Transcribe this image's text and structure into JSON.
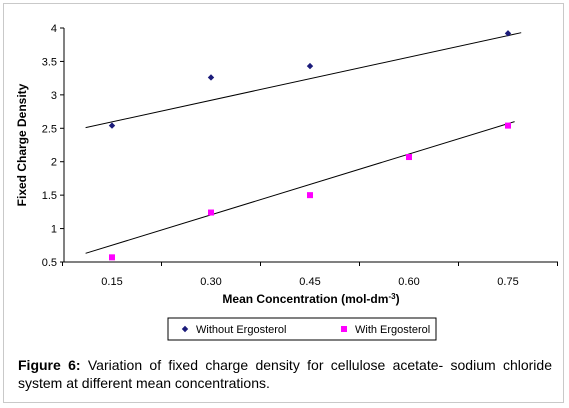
{
  "chart_data": {
    "type": "scatter",
    "xlabel": "Mean Concentration (mol-dm",
    "xlabel_superscript": "-3",
    "xlabel_suffix": ")",
    "ylabel": "Fixed Charge Density",
    "categories": [
      "0.15",
      "0.30",
      "0.45",
      "0.60",
      "0.75"
    ],
    "y_ticks": [
      "4",
      "3.5",
      "3",
      "2.5",
      "2",
      "1.5",
      "1",
      "0.5"
    ],
    "ylim": [
      0.5,
      4
    ],
    "grid": false,
    "legend_position": "bottom",
    "series": [
      {
        "name": "Without Ergosterol",
        "marker": "diamond",
        "color": "#1b1b7a",
        "points": [
          {
            "x": 0.15,
            "y": 2.54
          },
          {
            "x": 0.3,
            "y": 3.26
          },
          {
            "x": 0.45,
            "y": 3.43
          },
          {
            "x": 0.75,
            "y": 3.92
          }
        ],
        "trendline": [
          {
            "x": 0.11,
            "y": 2.51
          },
          {
            "x": 0.77,
            "y": 3.93
          }
        ]
      },
      {
        "name": "With Ergosterol",
        "marker": "square",
        "color": "#ff00ff",
        "points": [
          {
            "x": 0.15,
            "y": 0.57
          },
          {
            "x": 0.3,
            "y": 1.24
          },
          {
            "x": 0.45,
            "y": 1.5
          },
          {
            "x": 0.6,
            "y": 2.07
          },
          {
            "x": 0.75,
            "y": 2.54
          }
        ],
        "trendline": [
          {
            "x": 0.11,
            "y": 0.63
          },
          {
            "x": 0.76,
            "y": 2.6
          }
        ]
      }
    ]
  },
  "caption": {
    "label": "Figure 6:",
    "text": " Variation of fixed charge density for cellulose acetate- sodium chloride system at different mean concentrations."
  },
  "colors": {
    "axis": "#000000",
    "frame": "#c9c9c9",
    "trendline": "#000000"
  }
}
